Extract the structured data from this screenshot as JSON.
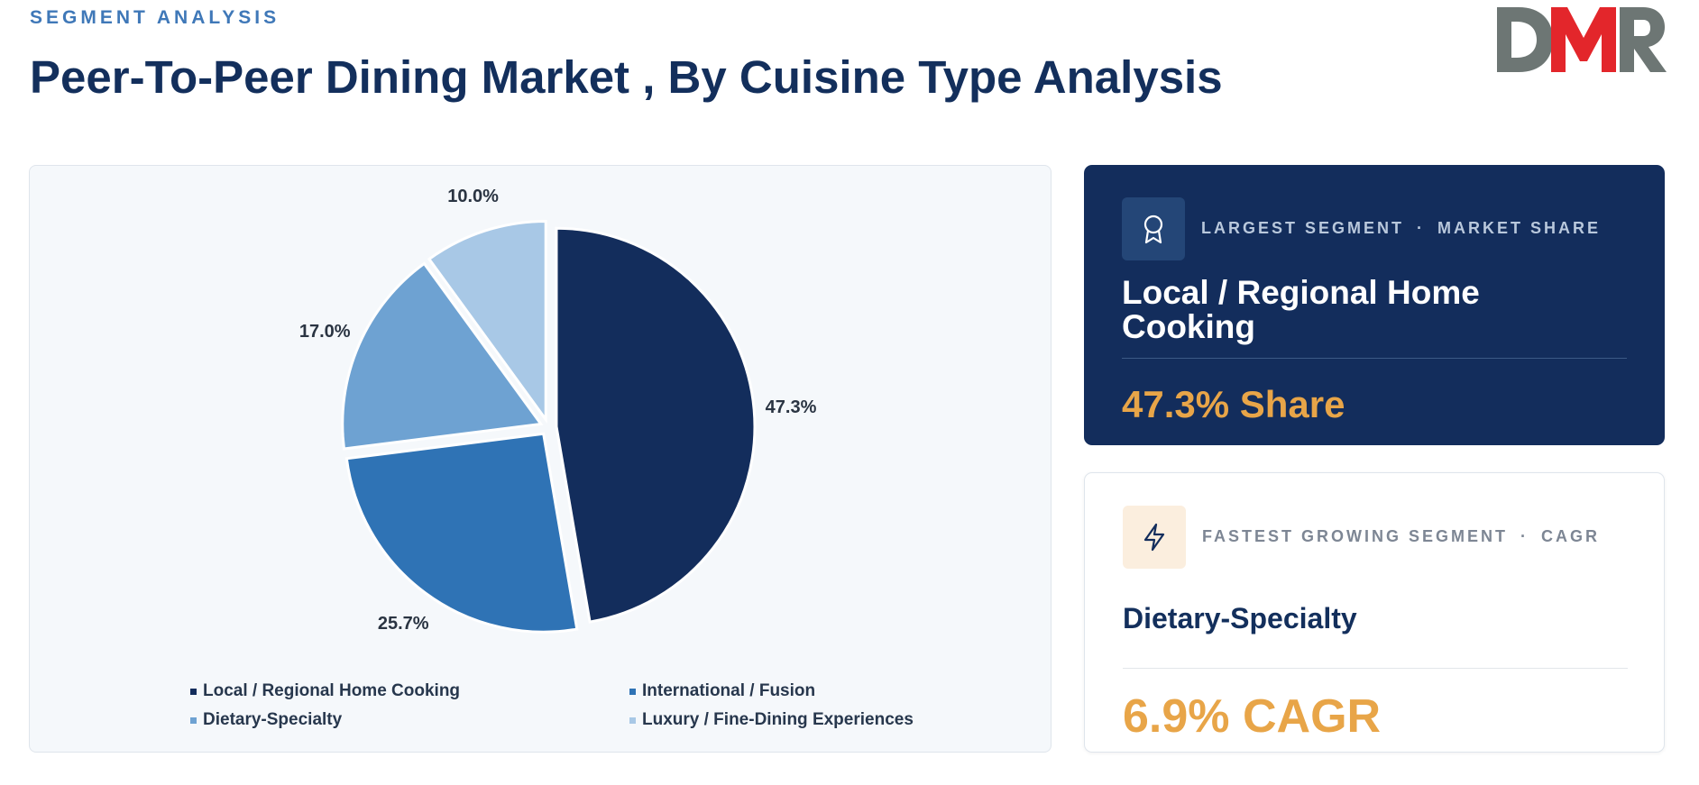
{
  "header": {
    "eyebrow": "SEGMENT ANALYSIS",
    "title": "Peer-To-Peer Dining Market , By Cuisine Type Analysis",
    "logo_text": "DMR"
  },
  "chart_data": {
    "type": "pie",
    "categories": [
      "Local / Regional Home Cooking",
      "International / Fusion",
      "Dietary-Specialty",
      "Luxury / Fine-Dining Experiences"
    ],
    "values": [
      47.3,
      25.7,
      17.0,
      10.0
    ],
    "value_labels": [
      "47.3%",
      "25.7%",
      "17.0%",
      "10.0%"
    ],
    "colors": [
      "#132d5c",
      "#2f73b5",
      "#6ea2d2",
      "#a8c8e6"
    ],
    "legend_placement": "bottom",
    "title": ""
  },
  "cards": {
    "largest": {
      "label": "LARGEST SEGMENT",
      "separator": "·",
      "sublabel": "MARKET SHARE",
      "name": "Local / Regional Home Cooking",
      "value": "47.3% Share",
      "icon": "award-icon"
    },
    "fastest": {
      "label": "FASTEST GROWING SEGMENT",
      "separator": "·",
      "sublabel": "CAGR",
      "name": "Dietary-Specialty",
      "value": "6.9% CAGR",
      "icon": "lightning-icon"
    }
  }
}
